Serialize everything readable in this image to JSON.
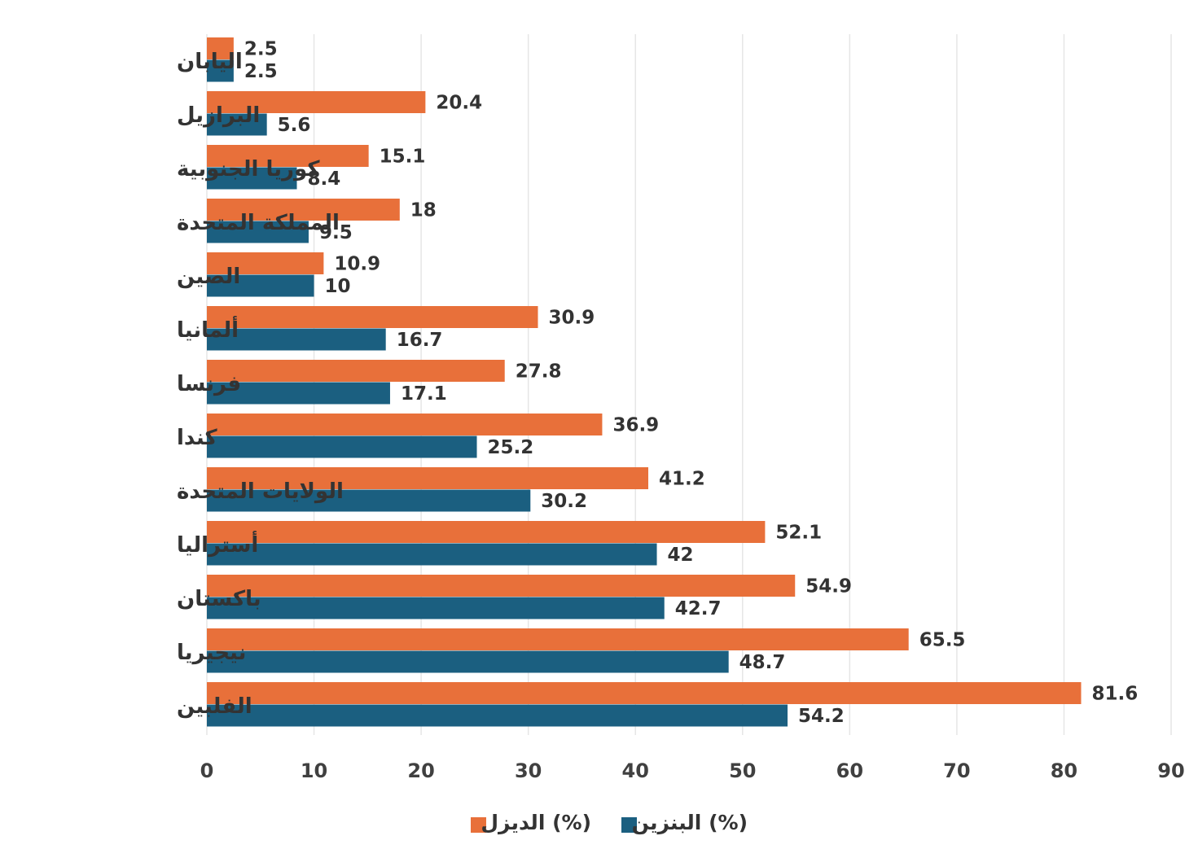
{
  "chart_data": {
    "type": "bar",
    "orientation": "horizontal",
    "categories": [
      "اليابان",
      "البرازيل",
      "كوريا الجنوبية",
      "المملكة المتحدة",
      "الصين",
      "ألمانيا",
      "فرنسا",
      "كندا",
      "الولايات المتحدة",
      "أستراليا",
      "باكستان",
      "نيجيريا",
      "الفلبين"
    ],
    "series": [
      {
        "name": "الديزل (%)",
        "color": "#E8703A",
        "values": [
          2.5,
          20.4,
          15.1,
          18,
          10.9,
          30.9,
          27.8,
          36.9,
          41.2,
          52.1,
          54.9,
          65.5,
          81.6
        ]
      },
      {
        "name": "البنزين (%)",
        "color": "#1B5F80",
        "values": [
          2.5,
          5.6,
          8.4,
          9.5,
          10,
          16.7,
          17.1,
          25.2,
          30.2,
          42,
          42.7,
          48.7,
          54.2
        ]
      }
    ],
    "xlim": [
      0,
      90
    ],
    "xticks": [
      0,
      10,
      20,
      30,
      40,
      50,
      60,
      70,
      80,
      90
    ],
    "grid": true,
    "legend_position": "bottom",
    "title": "",
    "xlabel": "",
    "ylabel": ""
  }
}
